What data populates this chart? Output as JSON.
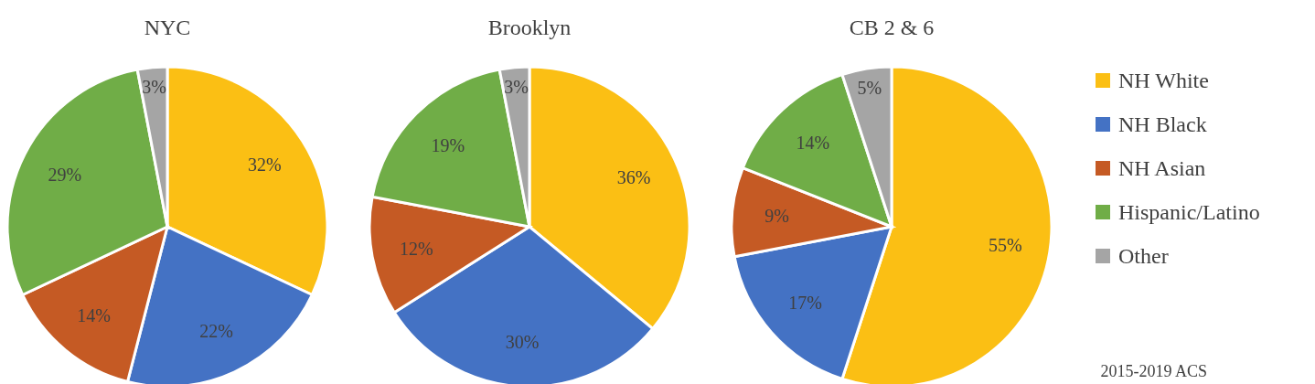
{
  "chart_data": [
    {
      "type": "pie",
      "title": "NYC",
      "values": [
        32,
        22,
        14,
        29,
        3
      ],
      "colors": [
        "#fbbf14",
        "#4472c4",
        "#c55a24",
        "#70ad47",
        "#a5a5a5"
      ],
      "value_labels": [
        "32%",
        "22%",
        "14%",
        "29%",
        "3%"
      ]
    },
    {
      "type": "pie",
      "title": "Brooklyn",
      "values": [
        36,
        30,
        12,
        19,
        3
      ],
      "colors": [
        "#fbbf14",
        "#4472c4",
        "#c55a24",
        "#70ad47",
        "#a5a5a5"
      ],
      "value_labels": [
        "36%",
        "30%",
        "12%",
        "19%",
        "3%"
      ]
    },
    {
      "type": "pie",
      "title": "CB 2 & 6",
      "categories": [
        "NH White",
        "NH Black",
        "NH Asian",
        "Hispanic/Latino",
        "Other"
      ],
      "values": [
        55,
        17,
        9,
        14,
        5
      ],
      "colors": [
        "#fbbf14",
        "#4472c4",
        "#c55a24",
        "#70ad47",
        "#a5a5a5"
      ],
      "value_labels": [
        "55%",
        "17%",
        "9%",
        "14%",
        "5%"
      ],
      "legend": "right",
      "annotations": [
        "2015-2019 ACS"
      ]
    }
  ]
}
